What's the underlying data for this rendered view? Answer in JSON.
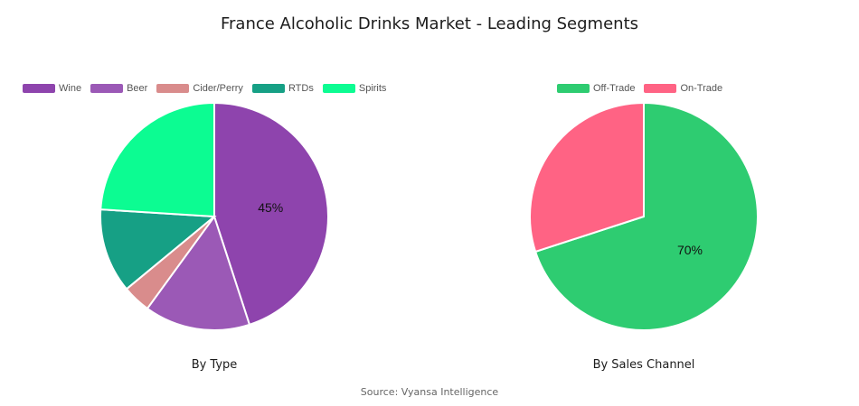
{
  "title": "France Alcoholic Drinks Market - Leading Segments",
  "source": "Source: Vyansa Intelligence",
  "chart_data": [
    {
      "type": "pie",
      "caption": "By Type",
      "legend_position": "top-left",
      "slices": [
        {
          "label": "Wine",
          "value": 45,
          "color": "#8E44AD",
          "shown_label": "45%"
        },
        {
          "label": "Beer",
          "value": 15,
          "color": "#9B59B6",
          "shown_label": ""
        },
        {
          "label": "Cider/Perry",
          "value": 4,
          "color": "#D98C8C",
          "shown_label": ""
        },
        {
          "label": "RTDs",
          "value": 12,
          "color": "#16A085",
          "shown_label": ""
        },
        {
          "label": "Spirits",
          "value": 24,
          "color": "#0CFC92",
          "shown_label": ""
        }
      ]
    },
    {
      "type": "pie",
      "caption": "By Sales Channel",
      "legend_position": "top-center",
      "slices": [
        {
          "label": "Off-Trade",
          "value": 70,
          "color": "#2ECC71",
          "shown_label": "70%"
        },
        {
          "label": "On-Trade",
          "value": 30,
          "color": "#FF6384",
          "shown_label": ""
        }
      ]
    }
  ]
}
